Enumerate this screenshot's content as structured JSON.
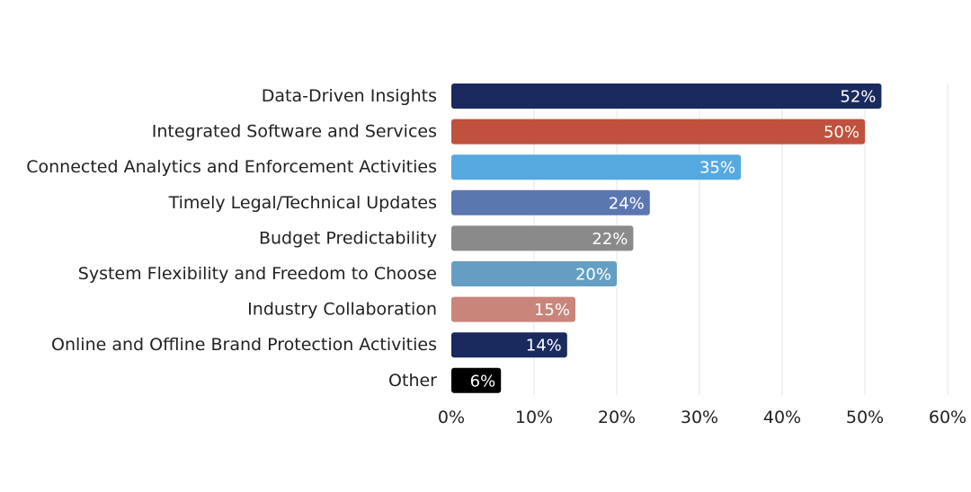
{
  "chart_data": {
    "type": "bar",
    "orientation": "horizontal",
    "categories": [
      "Data-Driven Insights",
      "Integrated Software and Services",
      "Connected Analytics and Enforcement Activities",
      "Timely Legal/Technical Updates",
      "Budget Predictability",
      "System Flexibility and Freedom to Choose",
      "Industry Collaboration",
      "Online and Offline Brand Protection Activities",
      "Other"
    ],
    "values": [
      52,
      50,
      35,
      24,
      22,
      20,
      15,
      14,
      6
    ],
    "value_labels": [
      "52%",
      "50%",
      "35%",
      "24%",
      "22%",
      "20%",
      "15%",
      "14%",
      "6%"
    ],
    "colors": [
      "#1b2a5e",
      "#c0513e",
      "#56a9de",
      "#5b77b0",
      "#8a8a8a",
      "#649fc3",
      "#c9857a",
      "#1b2a5e",
      "#000000"
    ],
    "xlim": [
      0,
      60
    ],
    "x_ticks": [
      0,
      10,
      20,
      30,
      40,
      50,
      60
    ],
    "x_tick_labels": [
      "0%",
      "10%",
      "20%",
      "30%",
      "40%",
      "50%",
      "60%"
    ],
    "grid": "vertical",
    "legend": "none",
    "title": "",
    "xlabel": "",
    "ylabel": ""
  }
}
